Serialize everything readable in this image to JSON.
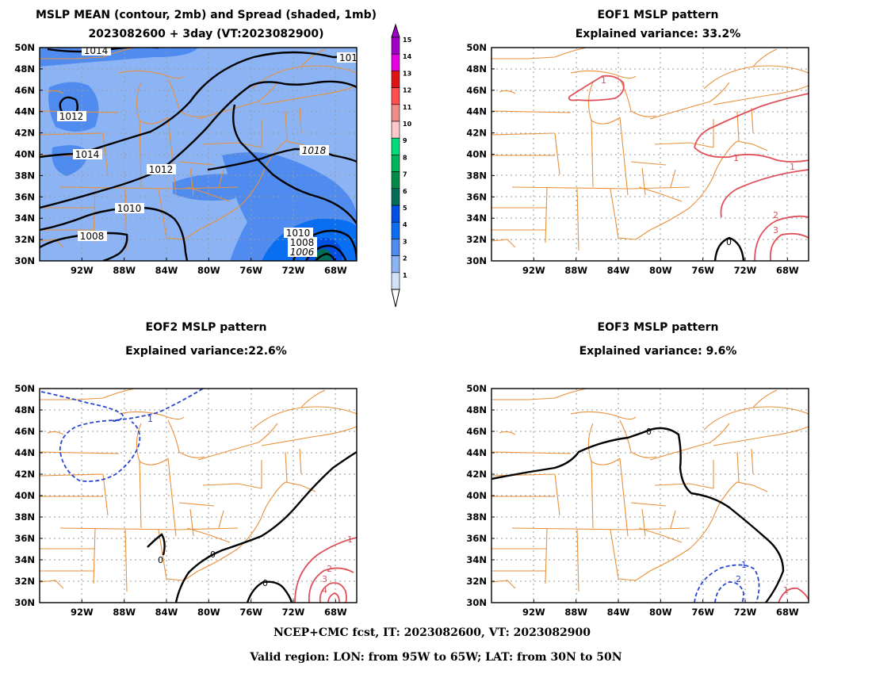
{
  "panels": [
    {
      "id": "mean",
      "title_lines": [
        "MSLP MEAN (contour, 2mb) and Spread (shaded, 1mb)",
        "2023082600 + 3day (VT:2023082900)"
      ],
      "contour_labels": [
        "1014",
        "1012",
        "1014",
        "1012",
        "1010",
        "1008",
        "1018",
        "1010",
        "1008",
        "1006",
        "101"
      ]
    },
    {
      "id": "eof1",
      "title_lines": [
        "EOF1 MSLP pattern",
        "Explained variance: 33.2%"
      ],
      "contour_labels": [
        "1",
        "1",
        "1",
        "2",
        "3",
        "0"
      ]
    },
    {
      "id": "eof2",
      "title_lines": [
        "EOF2 MSLP pattern",
        "Explained variance:22.6%"
      ],
      "contour_labels": [
        "1",
        "0",
        "0",
        "0",
        "1",
        "2",
        "3",
        "4"
      ]
    },
    {
      "id": "eof3",
      "title_lines": [
        "EOF3 MSLP pattern",
        "Explained variance: 9.6%"
      ],
      "contour_labels": [
        "0",
        "1",
        "2",
        "1"
      ]
    }
  ],
  "axes": {
    "lat_ticks": [
      "50N",
      "48N",
      "46N",
      "44N",
      "42N",
      "40N",
      "38N",
      "36N",
      "34N",
      "32N",
      "30N"
    ],
    "lon_ticks": [
      "92W",
      "88W",
      "84W",
      "80W",
      "76W",
      "72W",
      "68W"
    ]
  },
  "colorbar": {
    "levels": [
      "15",
      "14",
      "13",
      "12",
      "11",
      "10",
      "9",
      "8",
      "7",
      "6",
      "5",
      "4",
      "3",
      "2",
      "1"
    ],
    "colors": [
      "#a000c8",
      "#e600e6",
      "#e01414",
      "#ff5050",
      "#f08c8c",
      "#ffc8c8",
      "#00dc78",
      "#00b45a",
      "#008c46",
      "#006e5a",
      "#0050e6",
      "#0a6ef0",
      "#508cf0",
      "#8cb4f5",
      "#d2e1fa"
    ]
  },
  "map_colors": {
    "boundaries": "#e8913c",
    "contour": "#000000",
    "positive": "#e0505a",
    "negative": "#2846d2",
    "spread_light": "#8cb4f5",
    "spread_mid": "#508cf0",
    "spread_dark": "#0a6ef0"
  },
  "footer": {
    "line1": "NCEP+CMC fcst, IT: 2023082600, VT: 2023082900",
    "line2": "Valid region: LON: from 95W to 65W; LAT: from 30N to 50N"
  }
}
